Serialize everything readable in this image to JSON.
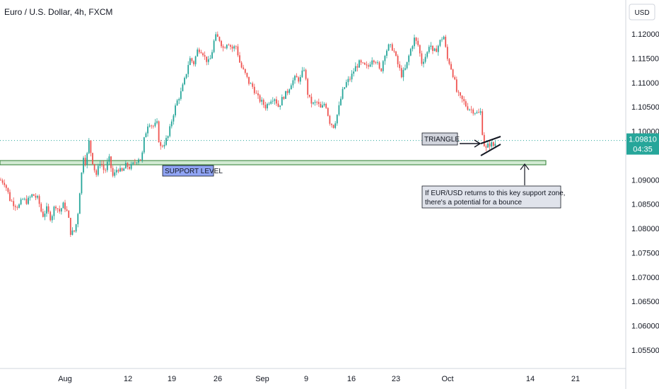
{
  "chart_data": {
    "type": "candlestick",
    "title": "Euro / U.S. Dollar, 4h, FXCM",
    "currency": "USD",
    "current_price": "1.09810",
    "countdown": "04:35",
    "ylim": [
      1.05,
      1.125
    ],
    "y_ticks": [
      "1.12000",
      "1.11500",
      "1.11000",
      "1.10500",
      "1.10000",
      "1.09000",
      "1.08500",
      "1.08000",
      "1.07500",
      "1.07000",
      "1.06500",
      "1.06000",
      "1.05500"
    ],
    "x_ticks": [
      "Aug",
      "12",
      "19",
      "26",
      "Sep",
      "9",
      "16",
      "23",
      "Oct",
      "14",
      "21"
    ],
    "colors": {
      "up": "#26a69a",
      "down": "#ef5350",
      "zone": "#4caf50",
      "price_tag": "#26a69a",
      "support_label": "#90a4f4"
    },
    "path": [
      [
        0,
        1.09
      ],
      [
        6,
        1.0895
      ],
      [
        10,
        1.088
      ],
      [
        14,
        1.086
      ],
      [
        20,
        1.085
      ],
      [
        26,
        1.0845
      ],
      [
        32,
        1.086
      ],
      [
        38,
        1.0855
      ],
      [
        46,
        1.087
      ],
      [
        54,
        1.086
      ],
      [
        60,
        1.0825
      ],
      [
        66,
        1.084
      ],
      [
        72,
        1.082
      ],
      [
        78,
        1.085
      ],
      [
        84,
        1.0835
      ],
      [
        90,
        1.085
      ],
      [
        96,
        1.083
      ],
      [
        100,
        1.079
      ],
      [
        106,
        1.0795
      ],
      [
        110,
        1.083
      ],
      [
        113,
        1.088
      ],
      [
        118,
        1.095
      ],
      [
        122,
        1.093
      ],
      [
        125,
        1.0985
      ],
      [
        128,
        1.096
      ],
      [
        132,
        1.093
      ],
      [
        136,
        1.091
      ],
      [
        142,
        1.094
      ],
      [
        148,
        1.0915
      ],
      [
        154,
        1.0945
      ],
      [
        160,
        1.0905
      ],
      [
        166,
        1.0925
      ],
      [
        172,
        1.0915
      ],
      [
        178,
        1.093
      ],
      [
        184,
        1.0925
      ],
      [
        190,
        1.0935
      ],
      [
        196,
        1.0945
      ],
      [
        200,
        1.094
      ],
      [
        204,
        1.0985
      ],
      [
        210,
        1.102
      ],
      [
        216,
        1.101
      ],
      [
        222,
        1.1015
      ],
      [
        226,
        1.0965
      ],
      [
        232,
        1.0975
      ],
      [
        238,
        1.099
      ],
      [
        244,
        1.103
      ],
      [
        250,
        1.106
      ],
      [
        256,
        1.108
      ],
      [
        262,
        1.111
      ],
      [
        268,
        1.115
      ],
      [
        274,
        1.114
      ],
      [
        280,
        1.117
      ],
      [
        286,
        1.1165
      ],
      [
        290,
        1.115
      ],
      [
        296,
        1.114
      ],
      [
        300,
        1.1165
      ],
      [
        304,
        1.1195
      ],
      [
        310,
        1.119
      ],
      [
        316,
        1.117
      ],
      [
        322,
        1.1185
      ],
      [
        328,
        1.117
      ],
      [
        334,
        1.1175
      ],
      [
        340,
        1.1135
      ],
      [
        346,
        1.112
      ],
      [
        352,
        1.11
      ],
      [
        358,
        1.109
      ],
      [
        364,
        1.107
      ],
      [
        370,
        1.106
      ],
      [
        376,
        1.105
      ],
      [
        382,
        1.1065
      ],
      [
        388,
        1.107
      ],
      [
        394,
        1.105
      ],
      [
        400,
        1.107
      ],
      [
        406,
        1.108
      ],
      [
        412,
        1.11
      ],
      [
        418,
        1.111
      ],
      [
        424,
        1.1105
      ],
      [
        430,
        1.113
      ],
      [
        436,
        1.107
      ],
      [
        442,
        1.1055
      ],
      [
        448,
        1.106
      ],
      [
        454,
        1.1045
      ],
      [
        460,
        1.106
      ],
      [
        466,
        1.102
      ],
      [
        472,
        1.101
      ],
      [
        478,
        1.104
      ],
      [
        484,
        1.108
      ],
      [
        490,
        1.11
      ],
      [
        496,
        1.111
      ],
      [
        502,
        1.113
      ],
      [
        508,
        1.114
      ],
      [
        514,
        1.1135
      ],
      [
        520,
        1.113
      ],
      [
        526,
        1.115
      ],
      [
        532,
        1.1145
      ],
      [
        538,
        1.112
      ],
      [
        544,
        1.116
      ],
      [
        550,
        1.1175
      ],
      [
        556,
        1.117
      ],
      [
        562,
        1.114
      ],
      [
        568,
        1.1115
      ],
      [
        574,
        1.113
      ],
      [
        580,
        1.1165
      ],
      [
        586,
        1.119
      ],
      [
        592,
        1.1175
      ],
      [
        596,
        1.114
      ],
      [
        600,
        1.115
      ],
      [
        604,
        1.116
      ],
      [
        608,
        1.1185
      ],
      [
        612,
        1.116
      ],
      [
        618,
        1.117
      ],
      [
        624,
        1.119
      ],
      [
        628,
        1.1195
      ],
      [
        632,
        1.115
      ],
      [
        636,
        1.114
      ],
      [
        642,
        1.111
      ],
      [
        646,
        1.108
      ],
      [
        650,
        1.107
      ],
      [
        656,
        1.106
      ],
      [
        660,
        1.105
      ],
      [
        666,
        1.1045
      ],
      [
        672,
        1.104
      ],
      [
        676,
        1.1035
      ],
      [
        680,
        1.104
      ],
      [
        682,
        1.1
      ],
      [
        686,
        1.096
      ],
      [
        690,
        1.097
      ],
      [
        694,
        1.0975
      ],
      [
        698,
        1.097
      ],
      [
        702,
        1.0978
      ]
    ]
  },
  "annotations": {
    "support_label": "SUPPORT LEVEL",
    "triangle_label": "TRIANGLE",
    "note": [
      "If EUR/USD returns to this key support zone,",
      "there's a potential for a bounce"
    ]
  }
}
